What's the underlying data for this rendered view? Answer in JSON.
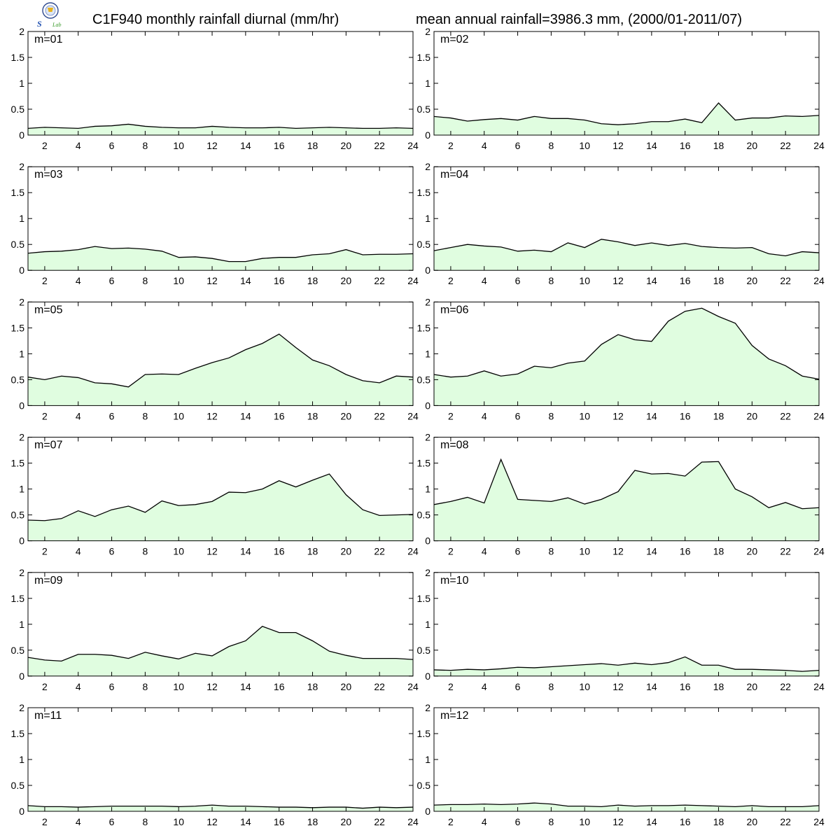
{
  "header": {
    "title_left": "C1F940 monthly rainfall diurnal (mm/hr)",
    "title_right": "mean annual rainfall=3986.3 mm, (2000/01-2011/07)"
  },
  "logo": {
    "text_main": "S",
    "text_sub": "Lab"
  },
  "colors": {
    "fill": "#e0fde0",
    "line": "#000000",
    "axis": "#000000"
  },
  "chart_data": {
    "type": "area",
    "xlim": [
      1,
      24
    ],
    "ylim": [
      0,
      2
    ],
    "x_ticks": [
      2,
      4,
      6,
      8,
      10,
      12,
      14,
      16,
      18,
      20,
      22,
      24
    ],
    "y_ticks": [
      0,
      0.5,
      1,
      1.5,
      2
    ],
    "y_tick_labels": [
      "0",
      "0.5",
      "1",
      "1.5",
      "2"
    ],
    "x": [
      1,
      2,
      3,
      4,
      5,
      6,
      7,
      8,
      9,
      10,
      11,
      12,
      13,
      14,
      15,
      16,
      17,
      18,
      19,
      20,
      21,
      22,
      23,
      24
    ],
    "panels": [
      {
        "label": "m=01",
        "values": [
          0.13,
          0.15,
          0.14,
          0.13,
          0.17,
          0.18,
          0.21,
          0.17,
          0.15,
          0.14,
          0.14,
          0.17,
          0.15,
          0.14,
          0.14,
          0.15,
          0.13,
          0.14,
          0.15,
          0.14,
          0.13,
          0.13,
          0.14,
          0.13
        ]
      },
      {
        "label": "m=02",
        "values": [
          0.36,
          0.33,
          0.27,
          0.3,
          0.32,
          0.29,
          0.36,
          0.32,
          0.32,
          0.29,
          0.22,
          0.2,
          0.22,
          0.26,
          0.26,
          0.31,
          0.24,
          0.62,
          0.29,
          0.33,
          0.33,
          0.37,
          0.36,
          0.38
        ]
      },
      {
        "label": "m=03",
        "values": [
          0.33,
          0.36,
          0.37,
          0.4,
          0.46,
          0.42,
          0.43,
          0.41,
          0.37,
          0.25,
          0.26,
          0.23,
          0.17,
          0.17,
          0.23,
          0.25,
          0.25,
          0.3,
          0.32,
          0.4,
          0.3,
          0.31,
          0.31,
          0.32
        ]
      },
      {
        "label": "m=04",
        "values": [
          0.38,
          0.44,
          0.5,
          0.47,
          0.45,
          0.37,
          0.39,
          0.36,
          0.53,
          0.44,
          0.6,
          0.55,
          0.48,
          0.53,
          0.48,
          0.52,
          0.46,
          0.44,
          0.43,
          0.44,
          0.32,
          0.28,
          0.36,
          0.34
        ]
      },
      {
        "label": "m=05",
        "values": [
          0.55,
          0.5,
          0.57,
          0.54,
          0.44,
          0.42,
          0.36,
          0.6,
          0.61,
          0.6,
          0.72,
          0.83,
          0.92,
          1.08,
          1.2,
          1.38,
          1.12,
          0.88,
          0.77,
          0.6,
          0.48,
          0.44,
          0.57,
          0.55
        ]
      },
      {
        "label": "m=06",
        "values": [
          0.6,
          0.55,
          0.57,
          0.67,
          0.57,
          0.61,
          0.76,
          0.73,
          0.82,
          0.86,
          1.18,
          1.37,
          1.27,
          1.24,
          1.63,
          1.82,
          1.88,
          1.72,
          1.59,
          1.16,
          0.9,
          0.77,
          0.57,
          0.51
        ]
      },
      {
        "label": "m=07",
        "values": [
          0.4,
          0.39,
          0.43,
          0.58,
          0.47,
          0.6,
          0.67,
          0.55,
          0.77,
          0.68,
          0.7,
          0.76,
          0.94,
          0.93,
          1.0,
          1.16,
          1.04,
          1.17,
          1.29,
          0.89,
          0.6,
          0.49,
          0.5,
          0.51
        ]
      },
      {
        "label": "m=08",
        "values": [
          0.7,
          0.76,
          0.84,
          0.73,
          1.57,
          0.8,
          0.78,
          0.76,
          0.83,
          0.71,
          0.8,
          0.95,
          1.36,
          1.29,
          1.3,
          1.25,
          1.52,
          1.53,
          1.0,
          0.85,
          0.64,
          0.74,
          0.62,
          0.64
        ]
      },
      {
        "label": "m=09",
        "values": [
          0.36,
          0.31,
          0.29,
          0.42,
          0.42,
          0.4,
          0.34,
          0.46,
          0.39,
          0.33,
          0.44,
          0.39,
          0.57,
          0.68,
          0.96,
          0.84,
          0.84,
          0.68,
          0.48,
          0.4,
          0.34,
          0.34,
          0.34,
          0.32
        ]
      },
      {
        "label": "m=10",
        "values": [
          0.12,
          0.11,
          0.13,
          0.12,
          0.14,
          0.17,
          0.16,
          0.18,
          0.2,
          0.22,
          0.24,
          0.21,
          0.25,
          0.22,
          0.26,
          0.37,
          0.21,
          0.21,
          0.13,
          0.13,
          0.12,
          0.11,
          0.09,
          0.11
        ]
      },
      {
        "label": "m=11",
        "values": [
          0.11,
          0.09,
          0.09,
          0.08,
          0.09,
          0.1,
          0.1,
          0.1,
          0.1,
          0.09,
          0.1,
          0.12,
          0.1,
          0.1,
          0.09,
          0.08,
          0.08,
          0.07,
          0.08,
          0.08,
          0.06,
          0.08,
          0.07,
          0.08
        ]
      },
      {
        "label": "m=12",
        "values": [
          0.12,
          0.13,
          0.13,
          0.14,
          0.13,
          0.14,
          0.16,
          0.14,
          0.1,
          0.1,
          0.09,
          0.12,
          0.1,
          0.11,
          0.11,
          0.12,
          0.11,
          0.1,
          0.09,
          0.11,
          0.09,
          0.09,
          0.09,
          0.11
        ]
      }
    ]
  }
}
